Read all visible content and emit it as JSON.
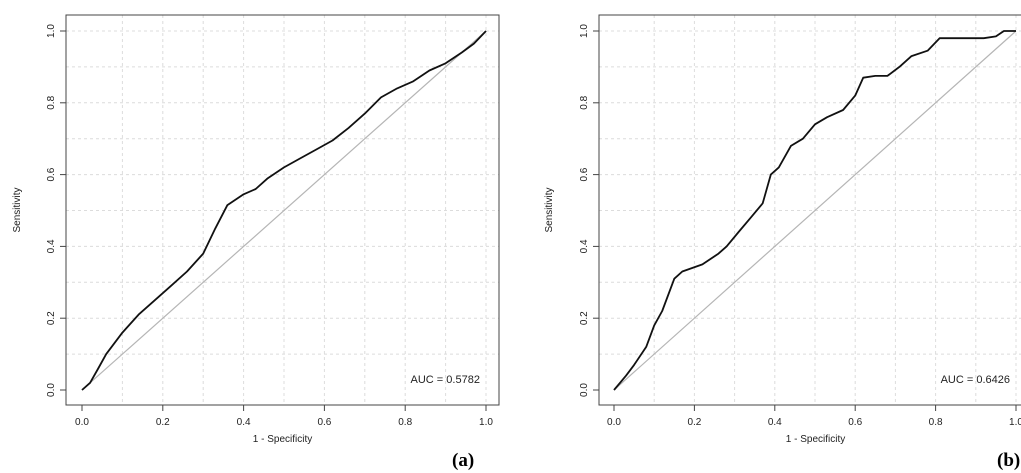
{
  "chart_data": [
    {
      "type": "line",
      "panel_label": "(a)",
      "xlabel": "1 - Specificity",
      "ylabel": "Sensitivity",
      "xlim": [
        0,
        1
      ],
      "ylim": [
        0,
        1
      ],
      "xticks": [
        "0.0",
        "0.2",
        "0.4",
        "0.6",
        "0.8",
        "1.0"
      ],
      "yticks": [
        "0.0",
        "0.2",
        "0.4",
        "0.6",
        "0.8",
        "1.0"
      ],
      "grid": true,
      "annotation": "AUC = 0.5782",
      "reference_line": {
        "x": [
          0,
          1
        ],
        "y": [
          0,
          1
        ],
        "color": "#b5b5b5"
      },
      "series": [
        {
          "x": [
            0.0,
            0.02,
            0.04,
            0.06,
            0.08,
            0.1,
            0.14,
            0.18,
            0.22,
            0.26,
            0.3,
            0.33,
            0.36,
            0.4,
            0.43,
            0.46,
            0.5,
            0.54,
            0.58,
            0.62,
            0.66,
            0.7,
            0.74,
            0.78,
            0.82,
            0.86,
            0.9,
            0.94,
            0.97,
            1.0
          ],
          "y": [
            0.0,
            0.02,
            0.06,
            0.1,
            0.13,
            0.16,
            0.21,
            0.25,
            0.29,
            0.33,
            0.38,
            0.45,
            0.515,
            0.545,
            0.56,
            0.59,
            0.62,
            0.645,
            0.67,
            0.695,
            0.73,
            0.77,
            0.815,
            0.84,
            0.86,
            0.89,
            0.91,
            0.94,
            0.965,
            1.0
          ]
        }
      ]
    },
    {
      "type": "line",
      "panel_label": "(b)",
      "xlabel": "1 - Specificity",
      "ylabel": "Sensitivity",
      "xlim": [
        0,
        1
      ],
      "ylim": [
        0,
        1
      ],
      "xticks": [
        "0.0",
        "0.2",
        "0.4",
        "0.6",
        "0.8",
        "1.0"
      ],
      "yticks": [
        "0.0",
        "0.2",
        "0.4",
        "0.6",
        "0.8",
        "1.0"
      ],
      "grid": true,
      "annotation": "AUC = 0.6426",
      "reference_line": {
        "x": [
          0,
          1
        ],
        "y": [
          0,
          1
        ],
        "color": "#b5b5b5"
      },
      "series": [
        {
          "x": [
            0.0,
            0.03,
            0.05,
            0.08,
            0.1,
            0.12,
            0.15,
            0.17,
            0.22,
            0.26,
            0.28,
            0.31,
            0.34,
            0.37,
            0.39,
            0.41,
            0.44,
            0.47,
            0.5,
            0.53,
            0.57,
            0.6,
            0.62,
            0.65,
            0.68,
            0.71,
            0.74,
            0.78,
            0.81,
            0.84,
            0.88,
            0.92,
            0.95,
            0.97,
            1.0
          ],
          "y": [
            0.0,
            0.04,
            0.07,
            0.12,
            0.18,
            0.22,
            0.31,
            0.33,
            0.35,
            0.38,
            0.4,
            0.44,
            0.48,
            0.52,
            0.6,
            0.62,
            0.68,
            0.7,
            0.74,
            0.76,
            0.78,
            0.82,
            0.87,
            0.875,
            0.875,
            0.9,
            0.93,
            0.945,
            0.98,
            0.98,
            0.98,
            0.98,
            0.985,
            1.0,
            1.0
          ]
        }
      ]
    }
  ]
}
